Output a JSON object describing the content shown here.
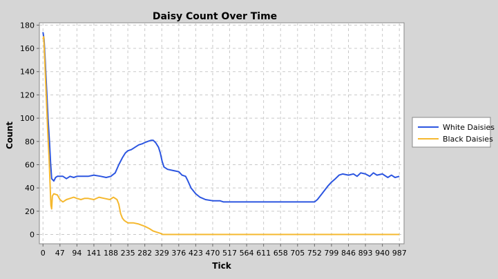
{
  "chart_data": {
    "type": "line",
    "title": "Daisy Count Over Time",
    "xlabel": "Tick",
    "ylabel": "Count",
    "xlim": [
      -10,
      1000
    ],
    "ylim": [
      -8,
      182
    ],
    "x_ticks": [
      0,
      47,
      94,
      141,
      188,
      235,
      282,
      329,
      376,
      423,
      470,
      517,
      564,
      611,
      658,
      705,
      752,
      799,
      846,
      893,
      940,
      987
    ],
    "y_ticks": [
      0,
      20,
      40,
      60,
      80,
      100,
      120,
      140,
      160,
      180
    ],
    "grid": true,
    "legend_position": "right",
    "colors": {
      "white_daisies": "#2b55e0",
      "black_daisies": "#f5b82e"
    },
    "series": [
      {
        "name": "White Daisies",
        "points": [
          [
            0,
            174
          ],
          [
            3,
            168
          ],
          [
            6,
            150
          ],
          [
            10,
            125
          ],
          [
            14,
            100
          ],
          [
            18,
            80
          ],
          [
            21,
            62
          ],
          [
            24,
            48
          ],
          [
            30,
            46
          ],
          [
            35,
            49
          ],
          [
            40,
            50
          ],
          [
            47,
            50
          ],
          [
            55,
            50
          ],
          [
            65,
            48
          ],
          [
            75,
            50
          ],
          [
            85,
            49
          ],
          [
            94,
            50
          ],
          [
            110,
            50
          ],
          [
            125,
            50
          ],
          [
            141,
            51
          ],
          [
            160,
            50
          ],
          [
            175,
            49
          ],
          [
            188,
            50
          ],
          [
            200,
            53
          ],
          [
            210,
            60
          ],
          [
            220,
            66
          ],
          [
            228,
            70
          ],
          [
            235,
            72
          ],
          [
            245,
            73
          ],
          [
            255,
            75
          ],
          [
            265,
            77
          ],
          [
            275,
            78
          ],
          [
            282,
            79
          ],
          [
            290,
            80
          ],
          [
            300,
            81
          ],
          [
            305,
            81
          ],
          [
            312,
            79
          ],
          [
            320,
            75
          ],
          [
            325,
            70
          ],
          [
            330,
            63
          ],
          [
            335,
            58
          ],
          [
            345,
            56
          ],
          [
            360,
            55
          ],
          [
            376,
            54
          ],
          [
            385,
            51
          ],
          [
            395,
            50
          ],
          [
            400,
            47
          ],
          [
            410,
            40
          ],
          [
            423,
            35
          ],
          [
            435,
            32
          ],
          [
            450,
            30
          ],
          [
            470,
            29
          ],
          [
            490,
            29
          ],
          [
            500,
            28
          ],
          [
            517,
            28
          ],
          [
            564,
            28
          ],
          [
            611,
            28
          ],
          [
            658,
            28
          ],
          [
            705,
            28
          ],
          [
            720,
            28
          ],
          [
            735,
            28
          ],
          [
            752,
            28
          ],
          [
            760,
            30
          ],
          [
            770,
            34
          ],
          [
            780,
            38
          ],
          [
            790,
            42
          ],
          [
            799,
            45
          ],
          [
            810,
            48
          ],
          [
            820,
            51
          ],
          [
            830,
            52
          ],
          [
            846,
            51
          ],
          [
            860,
            52
          ],
          [
            870,
            50
          ],
          [
            880,
            53
          ],
          [
            893,
            52
          ],
          [
            905,
            50
          ],
          [
            915,
            53
          ],
          [
            925,
            51
          ],
          [
            940,
            52
          ],
          [
            955,
            49
          ],
          [
            965,
            51
          ],
          [
            975,
            49
          ],
          [
            987,
            50
          ]
        ]
      },
      {
        "name": "Black Daisies",
        "points": [
          [
            0,
            168
          ],
          [
            2,
            170
          ],
          [
            5,
            150
          ],
          [
            9,
            120
          ],
          [
            13,
            90
          ],
          [
            17,
            65
          ],
          [
            20,
            40
          ],
          [
            22,
            25
          ],
          [
            24,
            22
          ],
          [
            26,
            33
          ],
          [
            30,
            35
          ],
          [
            40,
            34
          ],
          [
            47,
            30
          ],
          [
            55,
            28
          ],
          [
            65,
            30
          ],
          [
            75,
            31
          ],
          [
            85,
            32
          ],
          [
            94,
            31
          ],
          [
            105,
            30
          ],
          [
            115,
            31
          ],
          [
            125,
            31
          ],
          [
            141,
            30
          ],
          [
            155,
            32
          ],
          [
            170,
            31
          ],
          [
            185,
            30
          ],
          [
            195,
            32
          ],
          [
            205,
            30
          ],
          [
            210,
            26
          ],
          [
            215,
            18
          ],
          [
            220,
            14
          ],
          [
            225,
            12
          ],
          [
            235,
            10
          ],
          [
            250,
            10
          ],
          [
            265,
            9
          ],
          [
            282,
            7
          ],
          [
            295,
            5
          ],
          [
            305,
            3
          ],
          [
            315,
            2
          ],
          [
            325,
            1
          ],
          [
            332,
            0
          ],
          [
            376,
            0
          ],
          [
            470,
            0
          ],
          [
            564,
            0
          ],
          [
            658,
            0
          ],
          [
            752,
            0
          ],
          [
            846,
            0
          ],
          [
            940,
            0
          ],
          [
            987,
            0
          ]
        ]
      }
    ]
  }
}
